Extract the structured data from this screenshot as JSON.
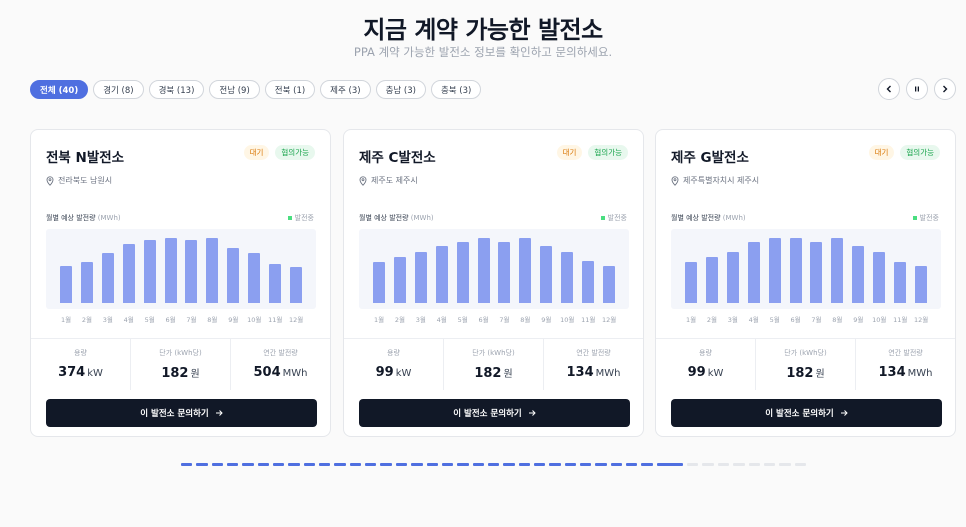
{
  "header": {
    "title": "지금 계약 가능한 발전소",
    "subtitle": "PPA 계약 가능한 발전소 정보를 확인하고 문의하세요."
  },
  "filters": [
    {
      "label": "전체 (40)",
      "active": true
    },
    {
      "label": "경기 (8)",
      "active": false
    },
    {
      "label": "경북 (13)",
      "active": false
    },
    {
      "label": "전남 (9)",
      "active": false
    },
    {
      "label": "전북 (1)",
      "active": false
    },
    {
      "label": "제주 (3)",
      "active": false
    },
    {
      "label": "충남 (3)",
      "active": false
    },
    {
      "label": "충북 (3)",
      "active": false
    }
  ],
  "controls": {
    "prev": "chevron-left-icon",
    "pause": "pause-icon",
    "next": "chevron-right-icon"
  },
  "cards": [
    {
      "name": "전북 N발전소",
      "badge_status": "대기",
      "badge_inquiry": "협의가능",
      "location": "전라북도 남원시",
      "chart_label": "월별 예상 발전량",
      "chart_unit": "(MWh)",
      "legend": "발전중",
      "months": [
        "1월",
        "2월",
        "3월",
        "4월",
        "5월",
        "6월",
        "7월",
        "8월",
        "9월",
        "10월",
        "11월",
        "12월"
      ],
      "monthly_values": [
        0.56,
        0.62,
        0.76,
        0.89,
        0.96,
        0.99,
        0.95,
        0.99,
        0.84,
        0.75,
        0.59,
        0.55
      ],
      "stats": {
        "capacity_label": "용량",
        "capacity_value": "374",
        "capacity_unit": "kW",
        "price_label": "단가 (kWh당)",
        "price_value": "182",
        "price_unit": "원",
        "annual_label": "연간 발전량",
        "annual_value": "504",
        "annual_unit": "MWh"
      },
      "cta": "이 발전소 문의하기"
    },
    {
      "name": "제주 C발전소",
      "badge_status": "대기",
      "badge_inquiry": "협의가능",
      "location": "제주도 제주시",
      "chart_label": "월별 예상 발전량",
      "chart_unit": "(MWh)",
      "legend": "발전중",
      "months": [
        "1월",
        "2월",
        "3월",
        "4월",
        "5월",
        "6월",
        "7월",
        "8월",
        "9월",
        "10월",
        "11월",
        "12월"
      ],
      "monthly_values": [
        0.62,
        0.69,
        0.78,
        0.86,
        0.93,
        0.99,
        0.93,
        0.99,
        0.86,
        0.78,
        0.63,
        0.56
      ],
      "stats": {
        "capacity_label": "용량",
        "capacity_value": "99",
        "capacity_unit": "kW",
        "price_label": "단가 (kWh당)",
        "price_value": "182",
        "price_unit": "원",
        "annual_label": "연간 발전량",
        "annual_value": "134",
        "annual_unit": "MWh"
      },
      "cta": "이 발전소 문의하기"
    },
    {
      "name": "제주 G발전소",
      "badge_status": "대기",
      "badge_inquiry": "협의가능",
      "location": "제주특별자치시 제주시",
      "chart_label": "월별 예상 발전량",
      "chart_unit": "(MWh)",
      "legend": "발전중",
      "months": [
        "1월",
        "2월",
        "3월",
        "4월",
        "5월",
        "6월",
        "7월",
        "8월",
        "9월",
        "10월",
        "11월",
        "12월"
      ],
      "monthly_values": [
        0.62,
        0.69,
        0.78,
        0.93,
        0.99,
        0.99,
        0.93,
        0.99,
        0.86,
        0.78,
        0.62,
        0.56
      ],
      "stats": {
        "capacity_label": "용량",
        "capacity_value": "99",
        "capacity_unit": "kW",
        "price_label": "단가 (kWh당)",
        "price_value": "182",
        "price_unit": "원",
        "annual_label": "연간 발전량",
        "annual_value": "134",
        "annual_unit": "MWh"
      },
      "cta": "이 발전소 문의하기"
    }
  ],
  "progress": {
    "total": 40,
    "current": 31
  }
}
